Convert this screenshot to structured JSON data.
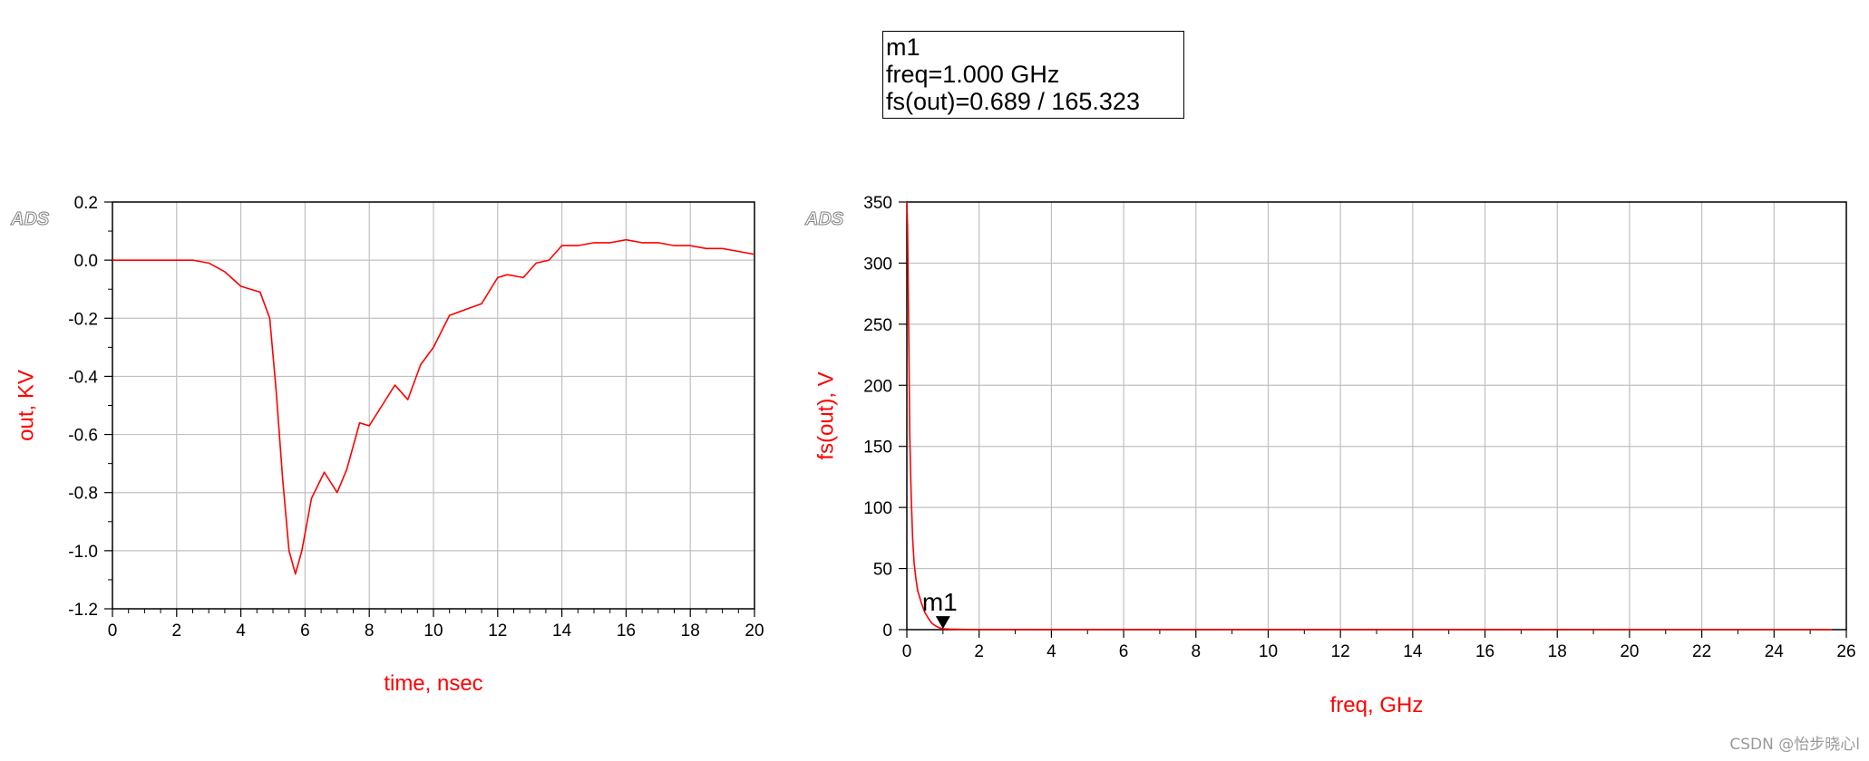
{
  "marker_readout": {
    "name": "m1",
    "freq_line": "freq=1.000 GHz",
    "value_line": "fs(out)=0.689 / 165.323"
  },
  "watermark": "CSDN @怡步晓心l",
  "colors": {
    "trace": "#ff0000",
    "axis_label": "#ff0000",
    "grid": "#c0c0c0",
    "frame": "#000000",
    "ads_logo": "#808080"
  },
  "chart_data": [
    {
      "type": "line",
      "logo": "ADS",
      "title": "",
      "xlabel": "time, nsec",
      "ylabel": "out, KV",
      "xlim": [
        0,
        20
      ],
      "ylim": [
        -1.2,
        0.2
      ],
      "xticks": [
        0,
        2,
        4,
        6,
        8,
        10,
        12,
        14,
        16,
        18,
        20
      ],
      "xtick_labels": [
        "0",
        "2",
        "4",
        "6",
        "8",
        "10",
        "12",
        "14",
        "16",
        "18",
        "20"
      ],
      "yticks": [
        0.2,
        0.0,
        -0.2,
        -0.4,
        -0.6,
        -0.8,
        -1.0,
        -1.2
      ],
      "ytick_labels": [
        "0.2",
        "0.0",
        "-0.2",
        "-0.4",
        "-0.6",
        "-0.8",
        "-1.0",
        "-1.2"
      ],
      "grid": true,
      "series": [
        {
          "x": [
            0,
            2,
            2.5,
            3.0,
            3.5,
            4.0,
            4.3,
            4.6,
            4.9,
            5.1,
            5.3,
            5.5,
            5.7,
            5.9,
            6.2,
            6.6,
            7.0,
            7.3,
            7.7,
            8.0,
            8.4,
            8.8,
            9.2,
            9.6,
            10.0,
            10.5,
            11.0,
            11.5,
            12.0,
            12.3,
            12.8,
            13.2,
            13.6,
            14.0,
            14.5,
            15.0,
            15.5,
            16.0,
            16.5,
            17.0,
            17.5,
            18.0,
            18.5,
            19.0,
            19.5,
            20.0
          ],
          "y": [
            0.0,
            0.0,
            0.0,
            -0.01,
            -0.04,
            -0.09,
            -0.1,
            -0.11,
            -0.2,
            -0.45,
            -0.75,
            -1.0,
            -1.08,
            -1.0,
            -0.82,
            -0.73,
            -0.8,
            -0.72,
            -0.56,
            -0.57,
            -0.5,
            -0.43,
            -0.48,
            -0.36,
            -0.3,
            -0.19,
            -0.17,
            -0.15,
            -0.06,
            -0.05,
            -0.06,
            -0.01,
            0.0,
            0.05,
            0.05,
            0.06,
            0.06,
            0.07,
            0.06,
            0.06,
            0.05,
            0.05,
            0.04,
            0.04,
            0.03,
            0.02
          ]
        }
      ]
    },
    {
      "type": "line",
      "logo": "ADS",
      "title": "",
      "xlabel": "freq, GHz",
      "ylabel": "fs(out), V",
      "xlim": [
        0,
        26
      ],
      "ylim": [
        0,
        350
      ],
      "xticks": [
        0,
        2,
        4,
        6,
        8,
        10,
        12,
        14,
        16,
        18,
        20,
        22,
        24,
        26
      ],
      "xtick_labels": [
        "0",
        "2",
        "4",
        "6",
        "8",
        "10",
        "12",
        "14",
        "16",
        "18",
        "20",
        "22",
        "24",
        "26"
      ],
      "yticks": [
        350,
        300,
        250,
        200,
        150,
        100,
        50,
        0
      ],
      "ytick_labels": [
        "350",
        "300",
        "250",
        "200",
        "150",
        "100",
        "50",
        "0"
      ],
      "grid": true,
      "marker": {
        "name": "m1",
        "x": 1.0,
        "y": 0.689
      },
      "series": [
        {
          "x": [
            0.0,
            0.02,
            0.05,
            0.08,
            0.12,
            0.16,
            0.2,
            0.25,
            0.3,
            0.4,
            0.5,
            0.6,
            0.7,
            0.8,
            0.9,
            1.0,
            1.2,
            1.5,
            2.0,
            4.0,
            8.0,
            12.0,
            16.0,
            20.0,
            24.0,
            25.6
          ],
          "y": [
            350,
            330,
            250,
            160,
            110,
            75,
            55,
            42,
            32,
            22,
            14,
            9,
            5,
            3,
            1.5,
            0.689,
            0.4,
            0.2,
            0.1,
            0.05,
            0.03,
            0.02,
            0.02,
            0.01,
            0.01,
            0.01
          ]
        }
      ]
    }
  ]
}
